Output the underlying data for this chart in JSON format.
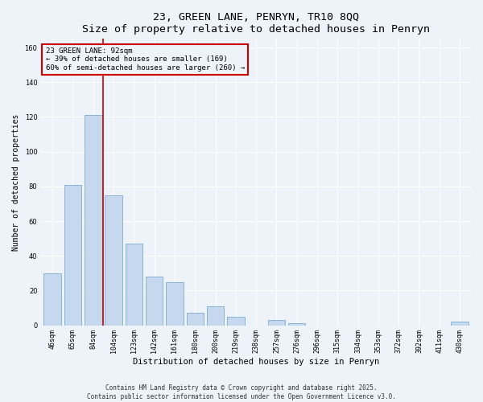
{
  "title": "23, GREEN LANE, PENRYN, TR10 8QQ",
  "subtitle": "Size of property relative to detached houses in Penryn",
  "xlabel": "Distribution of detached houses by size in Penryn",
  "ylabel": "Number of detached properties",
  "bar_labels": [
    "46sqm",
    "65sqm",
    "84sqm",
    "104sqm",
    "123sqm",
    "142sqm",
    "161sqm",
    "180sqm",
    "200sqm",
    "219sqm",
    "238sqm",
    "257sqm",
    "276sqm",
    "296sqm",
    "315sqm",
    "334sqm",
    "353sqm",
    "372sqm",
    "392sqm",
    "411sqm",
    "430sqm"
  ],
  "bar_values": [
    30,
    81,
    121,
    75,
    47,
    28,
    25,
    7,
    11,
    5,
    0,
    3,
    1,
    0,
    0,
    0,
    0,
    0,
    0,
    0,
    2
  ],
  "bar_color": "#c5d8ee",
  "bar_edge_color": "#7aadd4",
  "vline_x_idx": 2,
  "vline_color": "#cc0000",
  "annotation_line1": "23 GREEN LANE: 92sqm",
  "annotation_line2": "← 39% of detached houses are smaller (169)",
  "annotation_line3": "60% of semi-detached houses are larger (260) →",
  "annotation_box_color": "#cc0000",
  "ylim": [
    0,
    165
  ],
  "yticks": [
    0,
    20,
    40,
    60,
    80,
    100,
    120,
    140,
    160
  ],
  "background_color": "#eef2f9",
  "footer_line1": "Contains HM Land Registry data © Crown copyright and database right 2025.",
  "footer_line2": "Contains public sector information licensed under the Open Government Licence v3.0.",
  "title_fontsize": 9.5,
  "xlabel_fontsize": 7.5,
  "ylabel_fontsize": 7,
  "tick_fontsize": 6,
  "annotation_fontsize": 6.5,
  "footer_fontsize": 5.5
}
